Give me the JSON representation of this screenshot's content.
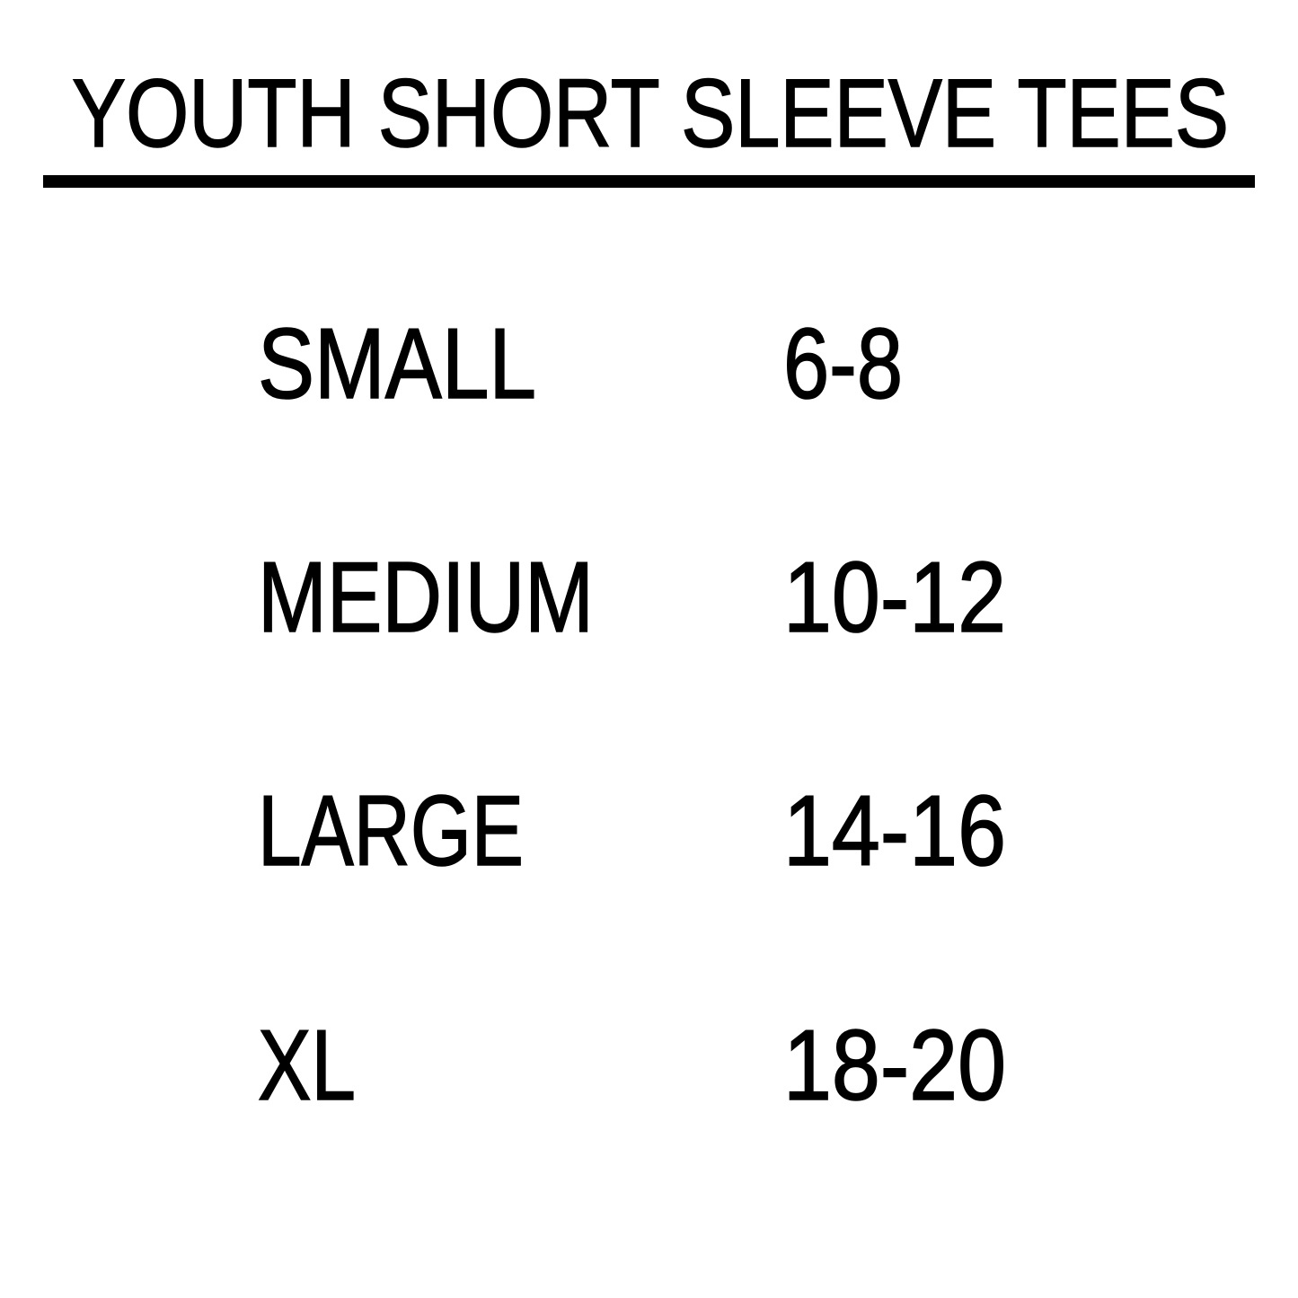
{
  "title": "YOUTH SHORT SLEEVE TEES",
  "text_color": "#000000",
  "background_color": "#ffffff",
  "sizes": [
    {
      "label": "SMALL",
      "range": "6-8"
    },
    {
      "label": "MEDIUM",
      "range": "10-12"
    },
    {
      "label": "LARGE",
      "range": "14-16"
    },
    {
      "label": "XL",
      "range": "18-20"
    }
  ]
}
